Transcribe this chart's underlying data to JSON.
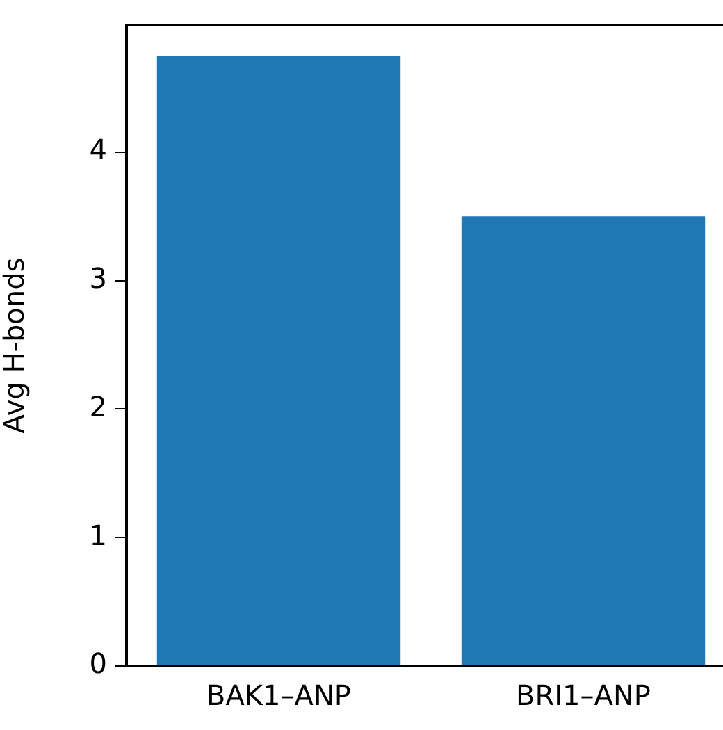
{
  "chart_data": {
    "type": "bar",
    "ylabel": "Avg H-bonds",
    "categories": [
      "BAK1–ANP",
      "BRI1–ANP"
    ],
    "values": [
      4.75,
      3.5
    ],
    "color": "#1f77b4",
    "ylim": [
      0,
      4.99
    ],
    "yticks": [
      0,
      1,
      2,
      3,
      4
    ],
    "grid": false,
    "legend": false
  }
}
